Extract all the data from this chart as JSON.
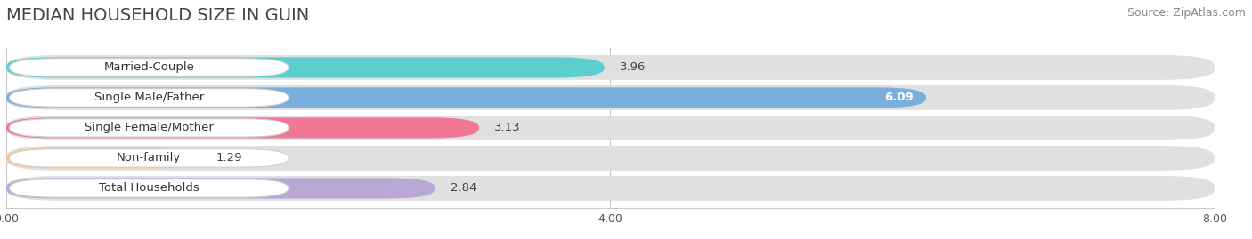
{
  "title": "MEDIAN HOUSEHOLD SIZE IN GUIN",
  "source": "Source: ZipAtlas.com",
  "categories": [
    "Married-Couple",
    "Single Male/Father",
    "Single Female/Mother",
    "Non-family",
    "Total Households"
  ],
  "values": [
    3.96,
    6.09,
    3.13,
    1.29,
    2.84
  ],
  "bar_colors": [
    "#5dcece",
    "#7aaedd",
    "#f07896",
    "#f5c99a",
    "#b8a8d6"
  ],
  "label_colors": [
    "#333333",
    "#ffffff",
    "#333333",
    "#333333",
    "#333333"
  ],
  "value_white": [
    false,
    true,
    false,
    false,
    false
  ],
  "xlim": [
    0,
    8.0
  ],
  "xticks": [
    0.0,
    4.0,
    8.0
  ],
  "background_color": "#ffffff",
  "bar_bg_color": "#e8e8e8",
  "title_fontsize": 14,
  "source_fontsize": 9,
  "label_fontsize": 9.5,
  "value_fontsize": 9.5,
  "tick_fontsize": 9
}
